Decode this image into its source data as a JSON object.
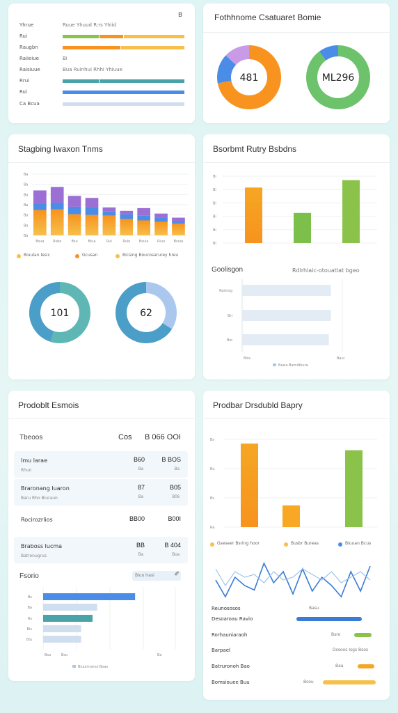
{
  "colors": {
    "orange": "#f7931e",
    "yellow": "#f6c04b",
    "purple": "#9b6fd4",
    "blue": "#4a8ce6",
    "teal": "#4aa3a9",
    "green": "#8bc34a",
    "lightblue": "#cfdff0",
    "skyblue": "#aac8ee"
  },
  "card1": {
    "corner": "B",
    "rows": [
      {
        "label": "Yhrue",
        "text": "Ruue Yhuud  R:rs Yhiid"
      },
      {
        "label": "Rui",
        "text": ""
      },
      {
        "label": "Raugbn",
        "text": ""
      },
      {
        "label": "Raiieiue",
        "text": "Bi"
      },
      {
        "label": "Raisiuue",
        "text": "Bua  Ruinhui  Rhhi  Yhiuue"
      },
      {
        "label": "Rrui",
        "text": ""
      },
      {
        "label": "Rui",
        "text": ""
      },
      {
        "label": "Ca Bcua",
        "text": ""
      }
    ]
  },
  "card2": {
    "title": "Fothhnome Csatuaret Bomie",
    "donut1_value": "481",
    "donut2_value": "ML296"
  },
  "card3": {
    "title": "Stagbing Iwaxon Tnms",
    "x_ticks": [
      "Bsua",
      "Rsba",
      "Bsu",
      "Biua",
      "Rui",
      "Ruio",
      "Bsuia",
      "Riuu",
      "Bsuia"
    ],
    "legend": [
      "Biuulan lesic",
      "Gcusan",
      "Bicsing Boucosarurey hreu"
    ],
    "donut1_value": "101",
    "donut2_value": "62"
  },
  "card4": {
    "title": "Bsorbmt Rutry Bsbdns",
    "section2_title": "Goolisgon",
    "section2_right": "Rdlrhiaic-otouatlat bgeo",
    "hbar_labels": [
      "Roiirsrg",
      "Bri",
      "Bio"
    ],
    "x_ticks": [
      "Bira",
      "Baui"
    ],
    "legend": "Basia Bamitbiura"
  },
  "card5": {
    "title": "Prodoblt Esmois",
    "header": {
      "label": "Tbeoos",
      "c1": "Cos",
      "c2": "B 066 OOI"
    },
    "rows": [
      {
        "label": "Imu larae",
        "sub": "Rhun",
        "v1": "B60",
        "s1": "Ba",
        "v2": "B BOS",
        "s2": "Ba"
      },
      {
        "label": "Braronang Iuaron",
        "sub": "Baru Rho Biuraun",
        "v1": "87",
        "s1": "Ba",
        "v2": "B05",
        "s2": "B06"
      },
      {
        "label": "Rocirozrlios",
        "sub": "",
        "v1": "BB00",
        "s1": "",
        "v2": "B00I",
        "s2": ""
      },
      {
        "label": "Braboss Iucma",
        "sub": "Batronugrus",
        "v1": "BB",
        "s1": "Ba",
        "v2": "B 404",
        "s2": "Boa"
      }
    ],
    "section2_title": "Fsorio",
    "section2_badge": "Biuo lrasi",
    "y_ticks": [
      "Bs",
      "Ba",
      "Rs",
      "Bis",
      "Biu"
    ],
    "x_ticks": [
      "Bsa",
      "Bsu"
    ],
    "legend": "Biuurrnarvo Boas"
  },
  "card6": {
    "title": "Prodbar Drsdubld Bapry",
    "y_ticks": [
      "Bs",
      "Bu",
      "Bs",
      "Ra"
    ],
    "legend": [
      "Gseseer Bsring hoor",
      "Busbr Bureas",
      "Biuuan Bcus"
    ],
    "rows": [
      {
        "label": "Reunososos",
        "value": "Basu"
      },
      {
        "label": "Desoaroau Ravio",
        "value": ""
      },
      {
        "label": "Rorhauniaraoh",
        "value": "Bsro"
      },
      {
        "label": "Barpael",
        "value": "Dssoos Isgs Bsos"
      },
      {
        "label": "Batruronoh Bao",
        "value": "Baa"
      },
      {
        "label": "Bomsiouee Buu",
        "value": "Bsou"
      }
    ]
  },
  "chart_data": [
    {
      "type": "bar",
      "id": "card1-progress",
      "series": [
        {
          "name": "row1",
          "values": [
            0.3,
            0.2,
            0.5
          ]
        },
        {
          "name": "row2",
          "values": [
            0.48,
            0.52
          ]
        },
        {
          "name": "row3",
          "values": [
            0.3,
            0.7
          ]
        },
        {
          "name": "row4",
          "values": [
            1.0
          ]
        },
        {
          "name": "row5",
          "values": [
            1.0
          ]
        }
      ]
    },
    {
      "type": "pie",
      "id": "card2-donut1",
      "values": [
        72,
        15,
        13
      ]
    },
    {
      "type": "pie",
      "id": "card2-donut2",
      "values": [
        90,
        10
      ]
    },
    {
      "type": "bar",
      "id": "card3-stacked",
      "stacked": true,
      "categories": [
        "Bsua",
        "Rsba",
        "Bsu",
        "Biua",
        "Rui",
        "Ruio",
        "Bsuia",
        "Riuu",
        "Bsuia"
      ],
      "series": [
        {
          "name": "Biuulan lesic",
          "values": [
            37,
            38,
            31,
            30,
            29,
            24,
            22,
            20,
            17
          ]
        },
        {
          "name": "Gcusan",
          "values": [
            10,
            10,
            11,
            11,
            6,
            7,
            7,
            6,
            4
          ]
        },
        {
          "name": "Bicsing Boucosarurey hreu",
          "values": [
            19,
            23,
            16,
            14,
            6,
            5,
            11,
            6,
            5
          ]
        }
      ],
      "ylim": [
        0,
        90
      ]
    },
    {
      "type": "pie",
      "id": "card3-donut1",
      "values": [
        55,
        45
      ]
    },
    {
      "type": "pie",
      "id": "card3-donut2",
      "values": [
        34,
        66
      ]
    },
    {
      "type": "bar",
      "id": "card4-bar",
      "categories": [
        "A",
        "B",
        "C"
      ],
      "values": [
        83,
        45,
        94
      ],
      "ylim": [
        0,
        100
      ]
    },
    {
      "type": "bar",
      "id": "card4-hbar",
      "horizontal": true,
      "categories": [
        "Roiirsrg",
        "Bri",
        "Bio"
      ],
      "values": [
        85,
        85,
        83
      ],
      "xlim": [
        0,
        100
      ]
    },
    {
      "type": "bar",
      "id": "card5-hbar",
      "horizontal": true,
      "categories": [
        "Bs",
        "Ba",
        "Rs",
        "Bis",
        "Biu"
      ],
      "values": [
        80,
        47,
        43,
        33,
        33
      ],
      "xlim": [
        0,
        115
      ]
    },
    {
      "type": "bar",
      "id": "card6-bar",
      "categories": [
        "A",
        "B",
        "C"
      ],
      "values": [
        100,
        26,
        92
      ],
      "ylim": [
        0,
        105
      ]
    },
    {
      "type": "line",
      "id": "card6-line",
      "series": [
        {
          "name": "dark",
          "values": [
            40,
            10,
            45,
            30,
            22,
            70,
            35,
            55,
            15,
            60,
            20,
            45,
            30,
            10,
            55,
            20,
            65
          ]
        },
        {
          "name": "light",
          "values": [
            60,
            30,
            55,
            45,
            50,
            35,
            55,
            40,
            45,
            60,
            50,
            40,
            55,
            35,
            45,
            55,
            40
          ]
        }
      ]
    },
    {
      "type": "bar",
      "id": "card6-progress",
      "horizontal": true,
      "values": [
        0.82,
        0.55,
        0.75,
        0.66
      ],
      "xlim": [
        0,
        1
      ]
    }
  ]
}
